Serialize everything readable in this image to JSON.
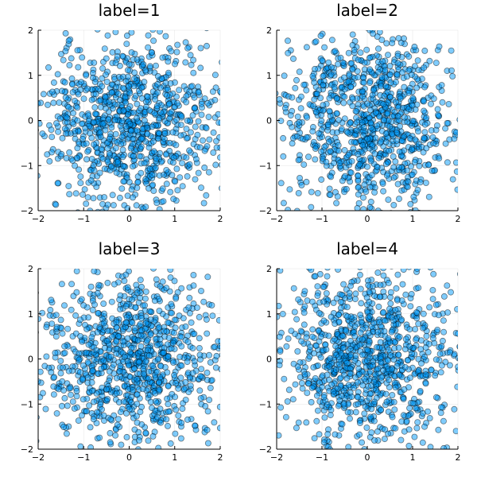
{
  "figure": {
    "accent_color": "#009AFA"
  },
  "chart_data": [
    {
      "type": "scatter",
      "title": "label=1",
      "xlim": [
        -2,
        2
      ],
      "ylim": [
        -2,
        2
      ],
      "xticks": [
        "-2",
        "-1",
        "0",
        "1",
        "2"
      ],
      "yticks": [
        "-2",
        "-1",
        "0",
        "1",
        "2"
      ],
      "grid": true,
      "legend": "none",
      "marker_color": "#009AFA",
      "n_points": 1000,
      "distribution": "approx. normal, mean 0, sd 1",
      "seed": 11
    },
    {
      "type": "scatter",
      "title": "label=2",
      "xlim": [
        -2,
        2
      ],
      "ylim": [
        -2,
        2
      ],
      "xticks": [
        "-2",
        "-1",
        "0",
        "1",
        "2"
      ],
      "yticks": [
        "-2",
        "-1",
        "0",
        "1",
        "2"
      ],
      "grid": true,
      "legend": "none",
      "marker_color": "#009AFA",
      "n_points": 1000,
      "distribution": "approx. normal, mean 0, sd 1",
      "seed": 22
    },
    {
      "type": "scatter",
      "title": "label=3",
      "xlim": [
        -2,
        2
      ],
      "ylim": [
        -2,
        2
      ],
      "xticks": [
        "-2",
        "-1",
        "0",
        "1",
        "2"
      ],
      "yticks": [
        "-2",
        "-1",
        "0",
        "1",
        "2"
      ],
      "grid": true,
      "legend": "none",
      "marker_color": "#009AFA",
      "n_points": 1000,
      "distribution": "approx. normal, mean 0, sd 1",
      "seed": 33
    },
    {
      "type": "scatter",
      "title": "label=4",
      "xlim": [
        -2,
        2
      ],
      "ylim": [
        -2,
        2
      ],
      "xticks": [
        "-2",
        "-1",
        "0",
        "1",
        "2"
      ],
      "yticks": [
        "-2",
        "-1",
        "0",
        "1",
        "2"
      ],
      "grid": true,
      "legend": "none",
      "marker_color": "#009AFA",
      "n_points": 1000,
      "distribution": "approx. normal, mean 0, sd 1",
      "seed": 44
    }
  ]
}
